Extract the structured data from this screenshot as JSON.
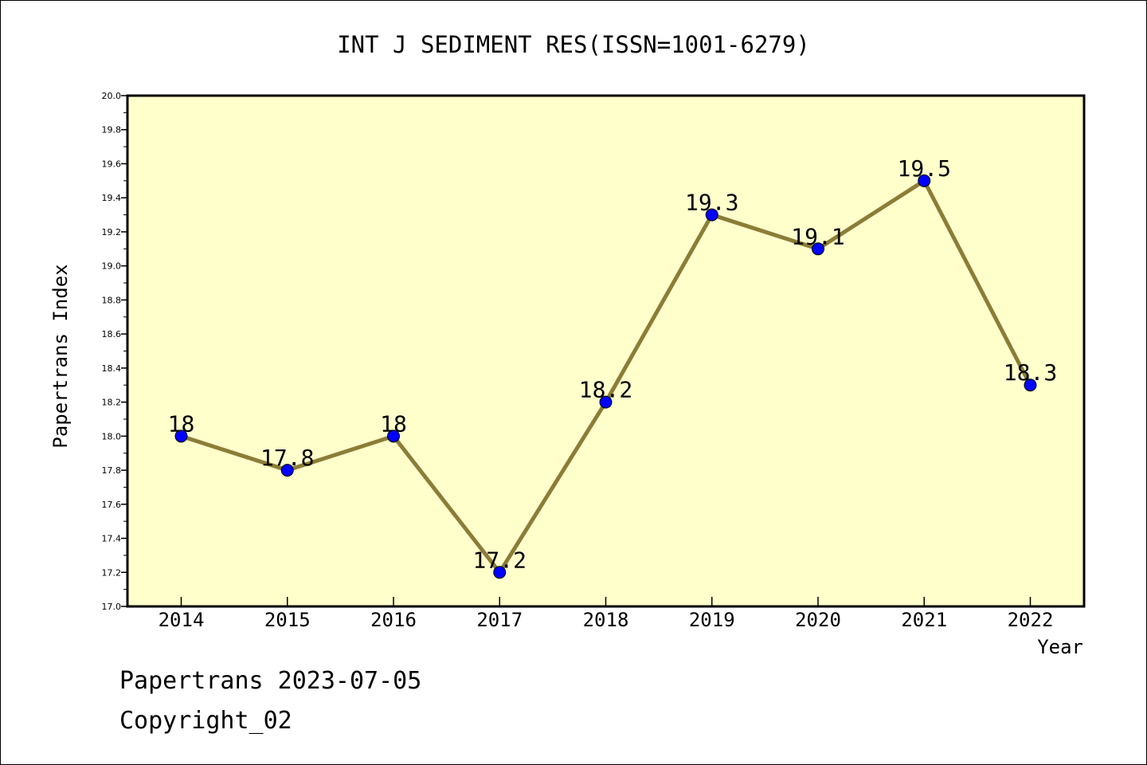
{
  "chart_data": {
    "type": "line",
    "title": "INT J SEDIMENT RES(ISSN=1001-6279)",
    "xlabel": "Year",
    "ylabel": "Papertrans Index",
    "categories": [
      "2014",
      "2015",
      "2016",
      "2017",
      "2018",
      "2019",
      "2020",
      "2021",
      "2022"
    ],
    "values": [
      18,
      17.8,
      18,
      17.2,
      18.2,
      19.3,
      19.1,
      19.5,
      18.3
    ],
    "data_labels": [
      "18",
      "17.8",
      "18",
      "17.2",
      "18.2",
      "19.3",
      "19.1",
      "19.5",
      "18.3"
    ],
    "y_ticks": [
      "17.0",
      "17.2",
      "17.4",
      "17.6",
      "17.8",
      "18.0",
      "18.2",
      "18.4",
      "18.6",
      "18.8",
      "19.0",
      "19.2",
      "19.4",
      "19.6",
      "19.8",
      "20.0"
    ],
    "ylim": [
      17.0,
      20.0
    ],
    "grid": false,
    "colors": {
      "plot_background": "#ffffcc",
      "line": "#8b7d37",
      "marker": "#0000ff"
    }
  },
  "footer": {
    "source": "Papertrans 2023-07-05",
    "copyright": "Copyright_02"
  }
}
